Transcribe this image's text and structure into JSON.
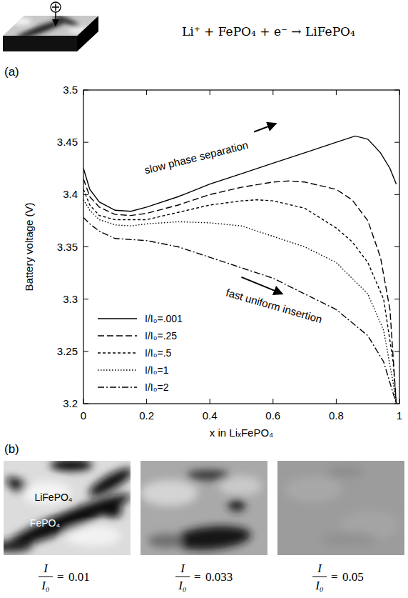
{
  "header": {
    "equation": "Li⁺ + FePO₄ + e⁻ → LiFePO₄"
  },
  "chart_data": {
    "type": "line",
    "panel_label": "(a)",
    "x_label": "x in LiₓFePO₄",
    "y_label": "Battery voltage (V)",
    "xlim": [
      0,
      1
    ],
    "ylim": [
      3.2,
      3.5
    ],
    "xticks": [
      0,
      0.2,
      0.4,
      0.6,
      0.8,
      1
    ],
    "yticks": [
      3.2,
      3.25,
      3.3,
      3.35,
      3.4,
      3.45,
      3.5
    ],
    "grid": false,
    "legend": "lower left",
    "annotations": [
      "slow phase separation",
      "fast uniform insertion"
    ],
    "series": [
      {
        "name": "I/I₀=.001",
        "color": "#000000",
        "line_style": "solid",
        "x": [
          0,
          0.02,
          0.05,
          0.1,
          0.15,
          0.2,
          0.3,
          0.4,
          0.5,
          0.6,
          0.7,
          0.8,
          0.86,
          0.9,
          0.94,
          0.97,
          0.99
        ],
        "values": [
          3.425,
          3.405,
          3.393,
          3.385,
          3.384,
          3.388,
          3.398,
          3.41,
          3.42,
          3.43,
          3.44,
          3.45,
          3.456,
          3.453,
          3.44,
          3.425,
          3.41
        ]
      },
      {
        "name": "I/I₀=.25",
        "color": "#000000",
        "line_style": "dashed",
        "x": [
          0,
          0.02,
          0.05,
          0.1,
          0.15,
          0.2,
          0.3,
          0.4,
          0.5,
          0.6,
          0.65,
          0.7,
          0.8,
          0.85,
          0.9,
          0.94,
          0.97,
          0.99
        ],
        "values": [
          3.415,
          3.398,
          3.388,
          3.381,
          3.38,
          3.382,
          3.39,
          3.4,
          3.407,
          3.412,
          3.413,
          3.412,
          3.405,
          3.395,
          3.375,
          3.34,
          3.29,
          3.2
        ]
      },
      {
        "name": "I/I₀=.5",
        "color": "#000000",
        "line_style": "short-dashed",
        "x": [
          0,
          0.02,
          0.05,
          0.1,
          0.2,
          0.3,
          0.4,
          0.5,
          0.55,
          0.6,
          0.7,
          0.8,
          0.85,
          0.9,
          0.95,
          0.98,
          0.99
        ],
        "values": [
          3.405,
          3.39,
          3.38,
          3.376,
          3.376,
          3.383,
          3.39,
          3.394,
          3.395,
          3.394,
          3.387,
          3.368,
          3.355,
          3.335,
          3.3,
          3.24,
          3.2
        ]
      },
      {
        "name": "I/I₀=1",
        "color": "#000000",
        "line_style": "dotted",
        "x": [
          0,
          0.02,
          0.05,
          0.1,
          0.15,
          0.2,
          0.3,
          0.4,
          0.5,
          0.6,
          0.7,
          0.8,
          0.9,
          0.95,
          0.98,
          0.99
        ],
        "values": [
          3.395,
          3.385,
          3.376,
          3.371,
          3.37,
          3.372,
          3.374,
          3.373,
          3.37,
          3.36,
          3.35,
          3.335,
          3.305,
          3.27,
          3.22,
          3.2
        ]
      },
      {
        "name": "I/I₀=2",
        "color": "#000000",
        "line_style": "dash-dot",
        "x": [
          0,
          0.02,
          0.05,
          0.1,
          0.2,
          0.3,
          0.4,
          0.5,
          0.6,
          0.7,
          0.8,
          0.9,
          0.95,
          0.98,
          0.99
        ],
        "values": [
          3.378,
          3.372,
          3.365,
          3.358,
          3.356,
          3.35,
          3.34,
          3.33,
          3.32,
          3.305,
          3.29,
          3.265,
          3.24,
          3.21,
          3.2
        ]
      }
    ]
  },
  "panel_b": {
    "label": "(b)",
    "images": [
      {
        "numerator": "I",
        "denominator": "I₀",
        "sign": "=",
        "ratio": 0.01,
        "labels": [
          "LiFePO₄",
          "FePO₄"
        ]
      },
      {
        "numerator": "I",
        "denominator": "I₀",
        "sign": "=",
        "ratio": 0.033
      },
      {
        "numerator": "I",
        "denominator": "I₀",
        "sign": "=",
        "ratio": 0.05
      }
    ]
  }
}
